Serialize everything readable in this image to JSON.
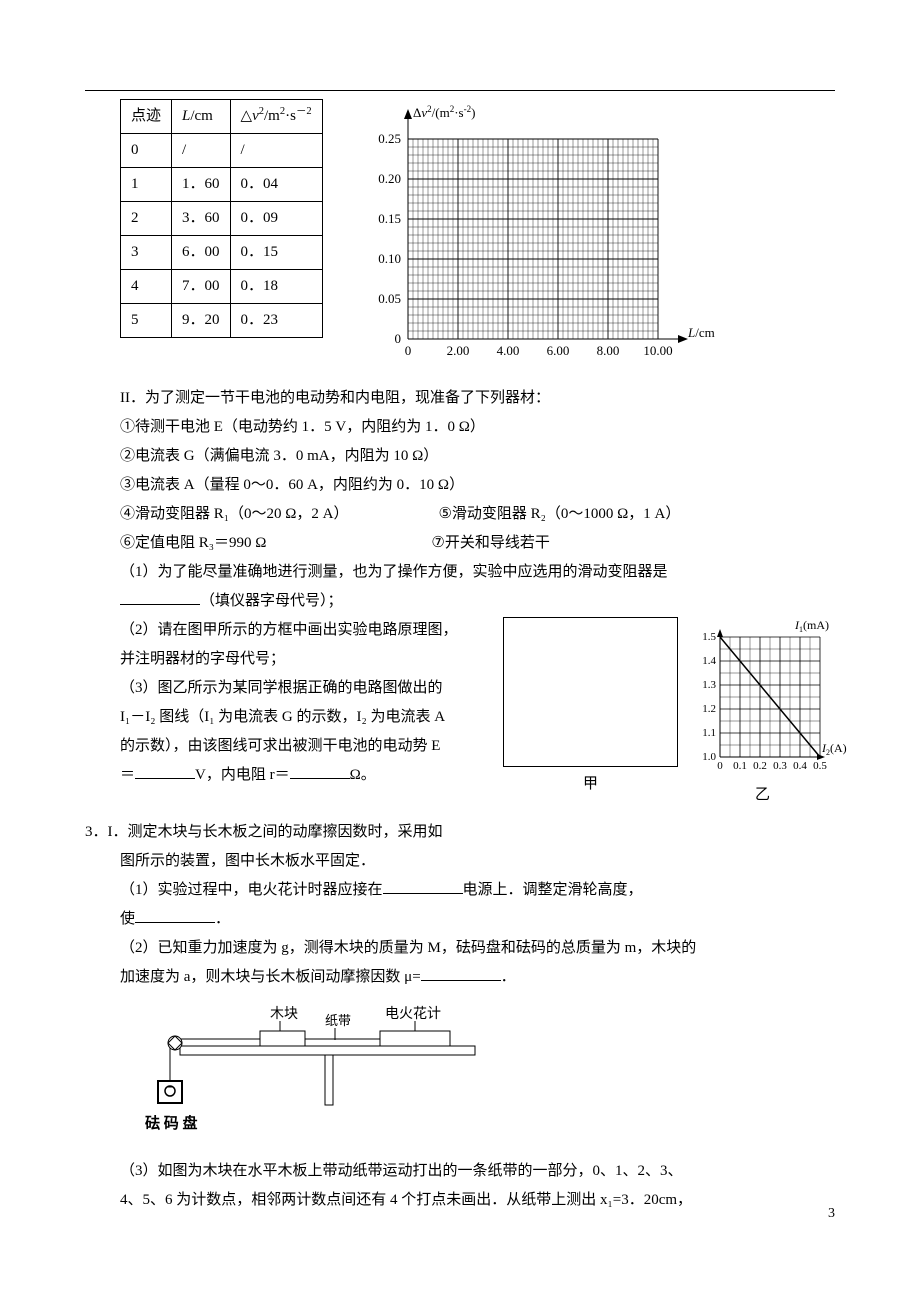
{
  "table": {
    "headers": [
      "点迹",
      "L/cm",
      "△v²/m²·s⁻²"
    ],
    "h0": "点迹",
    "h1_prefix": "L",
    "h1_unit": "/cm",
    "h2_prefix": "△",
    "h2_var": "v",
    "h2_unit_a": "/m",
    "h2_unit_b": "·s",
    "rows": [
      [
        "0",
        "/",
        "/"
      ],
      [
        "1",
        "1．60",
        "0．04"
      ],
      [
        "2",
        "3．60",
        "0．09"
      ],
      [
        "3",
        "6．00",
        "0．15"
      ],
      [
        "4",
        "7．00",
        "0．18"
      ],
      [
        "5",
        "9．20",
        "0．23"
      ]
    ]
  },
  "chart1": {
    "y_label_prefix": "Δ",
    "y_label_var": "v",
    "y_label_unit": "/(m²·s⁻²)",
    "x_label_var": "L",
    "x_label_unit": "/cm",
    "y_ticks": [
      "0.05",
      "0.10",
      "0.15",
      "0.20",
      "0.25"
    ],
    "x_ticks": [
      "0",
      "2.00",
      "4.00",
      "6.00",
      "8.00",
      "10.00"
    ],
    "grid_color": "#000",
    "bg": "#fff"
  },
  "sectionII": {
    "title": "II．为了测定一节干电池的电动势和内电阻，现准备了下列器材：",
    "items": [
      "①待测干电池 E（电动势约 1．5 V，内阻约为 1．0 Ω）",
      "②电流表 G（满偏电流 3．0 mA，内阻为 10 Ω）",
      "③电流表 A（量程 0～0．60 A，内阻约为 0．10 Ω）"
    ],
    "item4": "④滑动变阻器 R₁（0～20 Ω，2 A）",
    "item5": "⑤滑动变阻器 R₂（0～1000 Ω，1 A）",
    "item6": "⑥定值电阻 R₃＝990 Ω",
    "item7": "⑦开关和导线若干",
    "q1_a": "（1）为了能尽量准确地进行测量，也为了操作方便，实验中应选用的滑动变阻器是",
    "q1_b": "（填仪器字母代号）；",
    "q2_a": "（2）请在图甲所示的方框中画出实验电路原理图，",
    "q2_b": "并注明器材的字母代号；",
    "q3_a": "（3）图乙所示为某同学根据正确的电路图做出的",
    "q3_b_pre": "I₁－I₂ 图线（I₁ 为电流表 G 的示数，I₂ 为电流表 A",
    "q3_c": "的示数），由该图线可求出被测干电池的电动势 E",
    "q3_d_pre": "＝",
    "q3_d_unit1": "V，内电阻 r＝",
    "q3_d_unit2": "Ω。",
    "fig_jia": "甲",
    "fig_yi": "乙"
  },
  "chart2": {
    "y_label": "I₁(mA)",
    "x_label": "I₂(A)",
    "y_ticks": [
      "1.0",
      "1.1",
      "1.2",
      "1.3",
      "1.4",
      "1.5"
    ],
    "x_ticks": [
      "0",
      "0.1",
      "0.2",
      "0.3",
      "0.4",
      "0.5"
    ],
    "line_x1": 0,
    "line_y1": 1.5,
    "line_x2": 0.5,
    "line_y2": 1.0
  },
  "q3": {
    "line1": "3．I．测定木块与长木板之间的动摩擦因数时，采用如",
    "line2": "图所示的装置，图中长木板水平固定．",
    "sub1_a": "（1）实验过程中，电火花计时器应接在",
    "sub1_b": "电源上．调整定滑轮高度，",
    "sub1_c": "使",
    "sub1_d": "．",
    "sub2_a": "（2）已知重力加速度为 g，测得木块的质量为 M，砝码盘和砝码的总质量为 m，木块的",
    "sub2_b": "加速度为 a，则木块与长木板间动摩擦因数 μ=",
    "sub2_c": "．",
    "diagram": {
      "label_block": "木块",
      "label_tape": "纸带",
      "label_timer": "电火花计",
      "label_weight": "砝 码 盘"
    },
    "sub3_a": "（3）如图为木块在水平木板上带动纸带运动打出的一条纸带的一部分，0、1、2、3、",
    "sub3_b": "4、5、6 为计数点，相邻两计数点间还有 4 个打点未画出．从纸带上测出 x₁=3．20cm，"
  },
  "page_num": "3"
}
